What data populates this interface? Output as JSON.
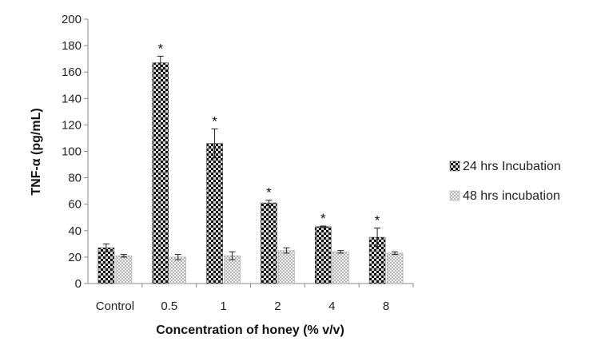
{
  "chart_data": {
    "type": "bar",
    "title": "",
    "xlabel": "Concentration of honey (% v/v)",
    "ylabel": "TNF-α (pg/mL)",
    "ylim": [
      0,
      200
    ],
    "yticks": [
      "0",
      "20",
      "40",
      "60",
      "80",
      "100",
      "120",
      "140",
      "160",
      "180",
      "200"
    ],
    "categories": [
      "Control",
      "0.5",
      "1",
      "2",
      "4",
      "8"
    ],
    "series": [
      {
        "name": "24 hrs Incubation",
        "values": [
          27,
          167,
          106,
          61,
          43,
          35
        ],
        "errors": [
          3,
          5,
          11,
          2,
          0.5,
          7
        ],
        "significance": [
          "",
          "*",
          "*",
          "*",
          "*",
          "*"
        ],
        "pattern": "checker-dark"
      },
      {
        "name": "48 hrs incubation",
        "values": [
          21,
          20,
          21,
          25,
          24,
          23
        ],
        "errors": [
          1,
          2,
          3,
          2,
          1,
          1
        ],
        "significance": [
          "",
          "",
          "",
          "",
          "",
          ""
        ],
        "pattern": "dotted-light"
      }
    ],
    "grid": false,
    "legend_position": "right"
  }
}
